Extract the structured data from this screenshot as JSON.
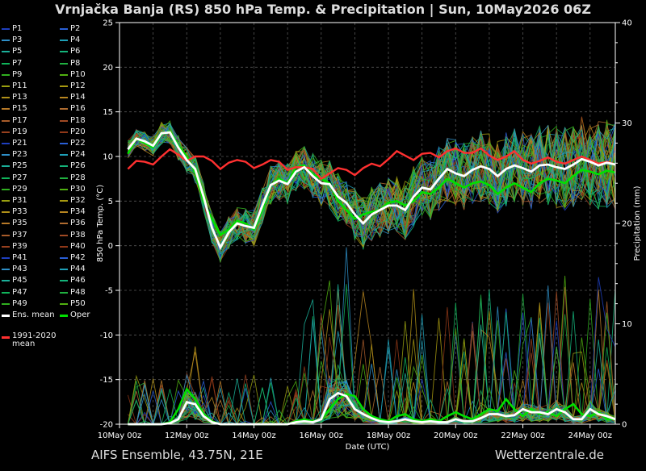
{
  "title": "Vrnjačka Banja  (RS)  850 hPa Temp. & Precipitation | Sun, 10May2026 06Z",
  "footer": {
    "left": "AIFS Ensemble, 43.75N, 21E",
    "right": "Wetterzentrale.de"
  },
  "legend": {
    "members": [
      "P1",
      "P2",
      "P3",
      "P4",
      "P5",
      "P6",
      "P7",
      "P8",
      "P9",
      "P10",
      "P11",
      "P12",
      "P13",
      "P14",
      "P15",
      "P16",
      "P17",
      "P18",
      "P19",
      "P20",
      "P21",
      "P22",
      "P23",
      "P24",
      "P25",
      "P26",
      "P27",
      "P28",
      "P29",
      "P30",
      "P31",
      "P32",
      "P33",
      "P34",
      "P35",
      "P36",
      "P37",
      "P38",
      "P39",
      "P40",
      "P41",
      "P42",
      "P43",
      "P44",
      "P45",
      "P46",
      "P47",
      "P48",
      "P49",
      "P50"
    ],
    "member_colors": [
      "#1f3fbf",
      "#2a5fd6",
      "#2e8fc8",
      "#1ea0b8",
      "#1bb09a",
      "#14b47a",
      "#10b45a",
      "#20b040",
      "#30b020",
      "#50b010",
      "#9aa010",
      "#a89a10",
      "#b09018",
      "#b88620",
      "#b87a28",
      "#b06c30",
      "#a85c2a",
      "#a04a24",
      "#98401e",
      "#903818",
      "#1f3fbf",
      "#2a5fd6",
      "#2e8fc8",
      "#1ea0b8",
      "#1bb09a",
      "#14b47a",
      "#10b45a",
      "#20b040",
      "#30b020",
      "#50b010",
      "#9aa010",
      "#a89a10",
      "#b09018",
      "#b88620",
      "#b87a28",
      "#b06c30",
      "#a85c2a",
      "#a04a24",
      "#98401e",
      "#903818",
      "#1f3fbf",
      "#2a5fd6",
      "#2e8fc8",
      "#1ea0b8",
      "#1bb09a",
      "#14b47a",
      "#10b45a",
      "#20b040",
      "#30b020",
      "#50b010"
    ],
    "ens_mean": "Ens. mean",
    "oper": "Oper",
    "clim": [
      "1991-2020",
      "mean"
    ]
  },
  "colors": {
    "ens_mean": "#ffffff",
    "oper": "#00e000",
    "clim": "#ff3030",
    "grid": "#555555"
  },
  "chart_data": {
    "type": "line",
    "xlabel": "Date (UTC)",
    "ylabel": "850 hPa Temp. (°C)",
    "y2label": "Precipitation (mm)",
    "ylim": [
      -20,
      25
    ],
    "y2lim": [
      0,
      40
    ],
    "xlim_hours": [
      0,
      354
    ],
    "y_ticks": [
      -20,
      -15,
      -10,
      -5,
      0,
      5,
      10,
      15,
      20,
      25
    ],
    "y2_ticks": [
      0,
      10,
      20,
      30,
      40
    ],
    "x_ticks": [
      {
        "h": 0,
        "label": "10May 00z"
      },
      {
        "h": 48,
        "label": "12May 00z"
      },
      {
        "h": 96,
        "label": "14May 00z"
      },
      {
        "h": 144,
        "label": "16May 00z"
      },
      {
        "h": 192,
        "label": "18May 00z"
      },
      {
        "h": 240,
        "label": "20May 00z"
      },
      {
        "h": 288,
        "label": "22May 00z"
      },
      {
        "h": 336,
        "label": "24May 00z"
      }
    ],
    "grid": true,
    "step_hours": 6,
    "start_hour": 6,
    "series": [
      {
        "name": "Ens. mean",
        "temp": [
          10.8,
          12.0,
          11.7,
          11.2,
          12.6,
          12.7,
          11.0,
          9.6,
          8.6,
          5.5,
          2.0,
          -0.2,
          1.5,
          2.5,
          2.2,
          2.0,
          4.5,
          6.8,
          7.3,
          6.9,
          8.3,
          8.8,
          7.8,
          7.0,
          6.9,
          5.5,
          4.8,
          3.5,
          2.5,
          3.5,
          4.0,
          4.5,
          4.5,
          4.0,
          5.5,
          6.5,
          6.3,
          7.5,
          8.6,
          8.1,
          7.8,
          8.5,
          8.9,
          8.6,
          7.8,
          8.6,
          9.0,
          8.7,
          8.3,
          9.0,
          9.1,
          8.8,
          8.6,
          9.1,
          9.7,
          9.4,
          9.0,
          9.3,
          9.1
        ],
        "precip": [
          0,
          0,
          0,
          0,
          0,
          0.1,
          0.5,
          2.2,
          2.0,
          0.8,
          0.2,
          0,
          0,
          0,
          0,
          0,
          0,
          0,
          0,
          0,
          0.2,
          0.3,
          0.2,
          0.5,
          2.5,
          3.1,
          2.8,
          1.5,
          1.0,
          0.6,
          0.3,
          0.2,
          0.3,
          0.5,
          0.3,
          0.2,
          0.3,
          0.2,
          0.2,
          0.5,
          0.3,
          0.3,
          0.6,
          1.0,
          1.0,
          0.8,
          0.9,
          1.5,
          1.2,
          1.2,
          1.0,
          1.5,
          1.2,
          0.5,
          0.5,
          1.5,
          1.0,
          0.8,
          0.5
        ]
      },
      {
        "name": "Oper",
        "temp": [
          10.3,
          12.0,
          11.5,
          11.0,
          12.5,
          12.8,
          11.2,
          10.0,
          8.2,
          5.0,
          3.0,
          1.2,
          1.8,
          2.8,
          2.5,
          1.8,
          4.0,
          6.8,
          7.5,
          7.0,
          8.8,
          9.0,
          8.0,
          7.5,
          7.0,
          5.0,
          4.0,
          3.0,
          3.5,
          3.8,
          4.0,
          4.8,
          5.0,
          4.5,
          5.0,
          6.0,
          5.8,
          6.5,
          7.5,
          7.0,
          6.5,
          7.0,
          7.2,
          6.8,
          5.8,
          6.5,
          7.0,
          6.5,
          6.0,
          7.0,
          7.5,
          7.3,
          7.0,
          7.8,
          8.5,
          8.3,
          8.0,
          8.4,
          8.2
        ],
        "precip": [
          0,
          0,
          0,
          0,
          0,
          0.2,
          1.5,
          3.5,
          2.5,
          1.0,
          0.3,
          0,
          0,
          0,
          0,
          0,
          0,
          0,
          0,
          0,
          0.3,
          0.5,
          0.3,
          0.5,
          1.5,
          2.5,
          3.0,
          2.8,
          1.5,
          0.8,
          0.5,
          0.3,
          0.8,
          1.0,
          0.5,
          0.3,
          0.5,
          0.3,
          0.8,
          1.2,
          0.8,
          0.5,
          1.0,
          1.5,
          1.3,
          2.5,
          1.5,
          0.8,
          1.5,
          1.0,
          1.2,
          0.8,
          1.5,
          2.0,
          1.0,
          0.8,
          1.2,
          0.5,
          0.5
        ]
      },
      {
        "name": "1991-2020 mean",
        "temp": [
          8.6,
          9.5,
          9.4,
          9.1,
          10.0,
          10.8,
          10.2,
          9.5,
          10.0,
          10.0,
          9.5,
          8.6,
          9.3,
          9.6,
          9.4,
          8.7,
          9.1,
          9.6,
          9.4,
          8.5,
          8.8,
          8.8,
          8.6,
          7.5,
          8.1,
          8.7,
          8.5,
          7.9,
          8.7,
          9.2,
          8.9,
          9.7,
          10.6,
          10.1,
          9.6,
          10.3,
          10.4,
          9.9,
          10.6,
          10.9,
          10.4,
          10.4,
          10.9,
          10.1,
          9.6,
          10.0,
          10.6,
          9.6,
          9.2,
          9.5,
          9.9,
          9.4,
          9.2,
          9.6,
          10.0,
          9.6,
          9.2,
          9.4,
          9.1
        ]
      }
    ]
  }
}
